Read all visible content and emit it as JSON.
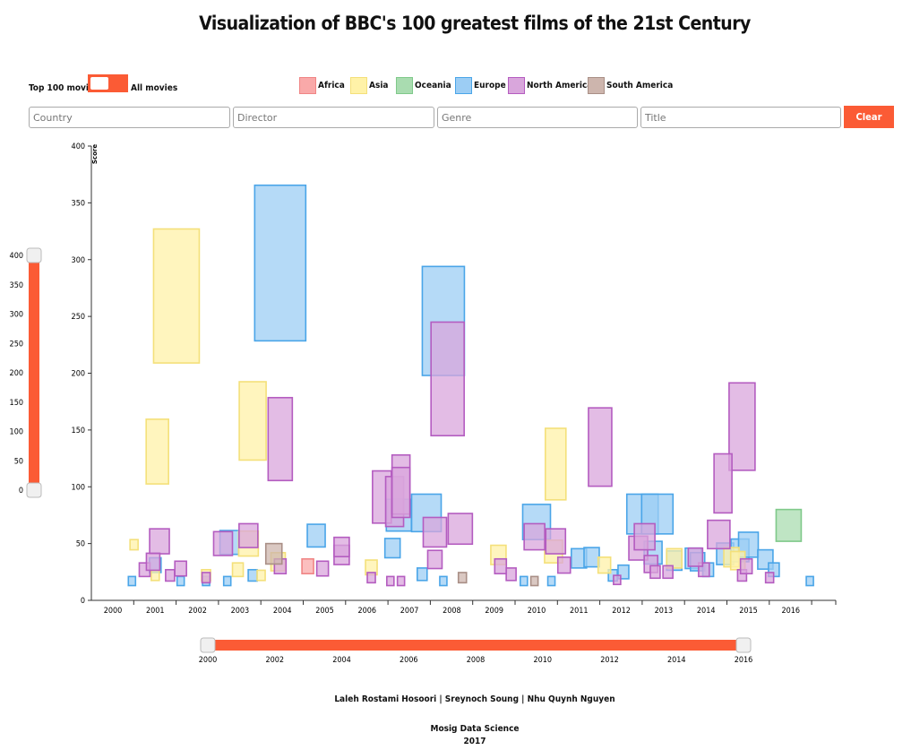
{
  "title": "Visualization of BBC's 100 greatest films of the 21st Century",
  "toggle": {
    "left_label": "Top 100 movies",
    "right_label": "All movies"
  },
  "legend": [
    {
      "name": "Africa",
      "fill": "#f9a9a9",
      "stroke": "#f08585"
    },
    {
      "name": "Asia",
      "fill": "#fff2a8",
      "stroke": "#f4e07a"
    },
    {
      "name": "Oceania",
      "fill": "#a9dcb0",
      "stroke": "#7fc98a"
    },
    {
      "name": "Europe",
      "fill": "#9ccdf4",
      "stroke": "#4aa5e8"
    },
    {
      "name": "North America",
      "fill": "#d9a6dc",
      "stroke": "#b45cc0"
    },
    {
      "name": "South America",
      "fill": "#cdb5ad",
      "stroke": "#a98f86"
    }
  ],
  "filters": {
    "country_placeholder": "Country",
    "director_placeholder": "Director",
    "genre_placeholder": "Genre",
    "title_placeholder": "Title",
    "clear_label": "Clear"
  },
  "colors": {
    "accent": "#fb5b35"
  },
  "chart_data": {
    "type": "scatter",
    "marker": "rectangle sized by value",
    "ylabel": "Score",
    "xlim": [
      2000,
      2016
    ],
    "ylim": [
      0,
      400
    ],
    "xticks": [
      2000,
      2001,
      2002,
      2003,
      2004,
      2005,
      2006,
      2007,
      2008,
      2009,
      2010,
      2011,
      2012,
      2013,
      2014,
      2015,
      2016
    ],
    "yticks": [
      0,
      50,
      100,
      150,
      200,
      250,
      300,
      350,
      400
    ],
    "series": [
      {
        "name": "Europe",
        "points": [
          [
            2003.95,
            297,
            57,
            137
          ],
          [
            2007.8,
            246,
            47,
            96
          ],
          [
            2000.45,
            17,
            8,
            8
          ],
          [
            2001.0,
            31,
            13,
            13
          ],
          [
            2001.6,
            17,
            8,
            8
          ],
          [
            2002.2,
            17,
            8,
            8
          ],
          [
            2002.75,
            51,
            21,
            21
          ],
          [
            2002.7,
            17,
            8,
            8
          ],
          [
            2003.3,
            22,
            10,
            10
          ],
          [
            2004.8,
            57,
            20,
            20
          ],
          [
            2006.75,
            75,
            28,
            28
          ],
          [
            2006.6,
            46,
            17,
            17
          ],
          [
            2007.4,
            77,
            33,
            33
          ],
          [
            2007.3,
            23,
            11,
            11
          ],
          [
            2007.8,
            17,
            8,
            8
          ],
          [
            2010.0,
            69,
            31,
            31
          ],
          [
            2009.7,
            17,
            8,
            8
          ],
          [
            2010.35,
            17,
            8,
            8
          ],
          [
            2011.0,
            37,
            17,
            17
          ],
          [
            2011.3,
            38,
            17,
            17
          ],
          [
            2011.8,
            22,
            10,
            10
          ],
          [
            2012.05,
            25,
            12,
            12
          ],
          [
            2012.5,
            76,
            35,
            35
          ],
          [
            2012.75,
            42,
            20,
            20
          ],
          [
            2012.85,
            76,
            35,
            35
          ],
          [
            2013.25,
            35,
            17,
            17
          ],
          [
            2013.7,
            37,
            18,
            18
          ],
          [
            2013.8,
            34,
            16,
            16
          ],
          [
            2014.05,
            27,
            12,
            12
          ],
          [
            2014.45,
            41,
            19,
            19
          ],
          [
            2014.8,
            44,
            20,
            20
          ],
          [
            2015.0,
            49,
            22,
            22
          ],
          [
            2015.4,
            36,
            17,
            17
          ],
          [
            2015.6,
            27,
            12,
            12
          ],
          [
            2016.45,
            17,
            8,
            8
          ]
        ]
      },
      {
        "name": "Asia",
        "points": [
          [
            2001.5,
            268,
            51,
            118
          ],
          [
            2001.05,
            131,
            25,
            57
          ],
          [
            2003.3,
            158,
            30,
            69
          ],
          [
            2000.5,
            49,
            9,
            9
          ],
          [
            2001.0,
            22,
            9,
            9
          ],
          [
            2002.2,
            22,
            10,
            10
          ],
          [
            2002.95,
            27,
            12,
            12
          ],
          [
            2003.2,
            50,
            22,
            22
          ],
          [
            2003.5,
            22,
            9,
            9
          ],
          [
            2003.9,
            34,
            16,
            16
          ],
          [
            2006.1,
            29,
            13,
            13
          ],
          [
            2009.1,
            40,
            17,
            17
          ],
          [
            2010.4,
            43,
            20,
            20
          ],
          [
            2010.45,
            120,
            23,
            63
          ],
          [
            2011.6,
            31,
            14,
            14
          ],
          [
            2013.25,
            37,
            17,
            17
          ],
          [
            2014.6,
            38,
            17,
            17
          ],
          [
            2014.75,
            35,
            16,
            16
          ]
        ]
      },
      {
        "name": "North America",
        "points": [
          [
            2003.95,
            142,
            27,
            73
          ],
          [
            2007.9,
            195,
            37,
            100
          ],
          [
            2011.5,
            135,
            26,
            69
          ],
          [
            2014.85,
            153,
            29,
            77
          ],
          [
            2014.4,
            103,
            20,
            52
          ],
          [
            2006.35,
            91,
            21,
            46
          ],
          [
            2006.65,
            87,
            20,
            44
          ],
          [
            2006.8,
            102,
            20,
            52
          ],
          [
            2001.1,
            52,
            22,
            22
          ],
          [
            2000.75,
            27,
            12,
            12
          ],
          [
            2000.95,
            34,
            15,
            15
          ],
          [
            2001.35,
            22,
            10,
            10
          ],
          [
            2001.6,
            28,
            13,
            13
          ],
          [
            2002.2,
            20,
            9,
            9
          ],
          [
            2002.6,
            50,
            21,
            21
          ],
          [
            2003.2,
            57,
            21,
            21
          ],
          [
            2003.95,
            30,
            13,
            13
          ],
          [
            2004.95,
            28,
            13,
            13
          ],
          [
            2005.4,
            40,
            17,
            17
          ],
          [
            2005.4,
            47,
            17,
            17
          ],
          [
            2006.1,
            20,
            9,
            9
          ],
          [
            2006.55,
            17,
            8,
            8
          ],
          [
            2006.8,
            17,
            8,
            8
          ],
          [
            2006.8,
            95,
            20,
            44
          ],
          [
            2007.6,
            60,
            26,
            26
          ],
          [
            2007.6,
            36,
            16,
            16
          ],
          [
            2008.2,
            63,
            27,
            27
          ],
          [
            2009.15,
            30,
            13,
            13
          ],
          [
            2009.4,
            23,
            11,
            11
          ],
          [
            2009.95,
            56,
            23,
            23
          ],
          [
            2010.45,
            52,
            22,
            22
          ],
          [
            2010.65,
            31,
            14,
            14
          ],
          [
            2012.4,
            46,
            21,
            21
          ],
          [
            2012.55,
            56,
            23,
            23
          ],
          [
            2012.7,
            32,
            15,
            15
          ],
          [
            2012.8,
            25,
            11,
            11
          ],
          [
            2013.1,
            25,
            11,
            11
          ],
          [
            2013.95,
            27,
            12,
            12
          ],
          [
            2014.3,
            58,
            25,
            25
          ],
          [
            2014.85,
            22,
            10,
            10
          ],
          [
            2015.5,
            20,
            9,
            9
          ],
          [
            2011.9,
            18,
            8,
            8
          ],
          [
            2014.95,
            30,
            13,
            13
          ],
          [
            2013.75,
            38,
            16,
            16
          ]
        ]
      },
      {
        "name": "Oceania",
        "points": [
          [
            2015.95,
            66,
            28,
            28
          ]
        ]
      },
      {
        "name": "Africa",
        "points": [
          [
            2004.6,
            30,
            13,
            13
          ]
        ]
      },
      {
        "name": "South America",
        "points": [
          [
            2003.8,
            41,
            18,
            18
          ],
          [
            2008.25,
            20,
            9,
            9
          ],
          [
            2009.95,
            17,
            8,
            8
          ]
        ]
      }
    ]
  },
  "score_slider": {
    "min": 0,
    "max": 400,
    "low": 0,
    "high": 400,
    "ticks": [
      0,
      50,
      100,
      150,
      200,
      250,
      300,
      350,
      400
    ]
  },
  "year_slider": {
    "min": 2000,
    "max": 2016,
    "low": 2000,
    "high": 2016,
    "ticks": [
      2000,
      2002,
      2004,
      2006,
      2008,
      2010,
      2012,
      2014,
      2016
    ]
  },
  "footer": {
    "authors": "Laleh Rostami Hosoori | Sreynoch Soung | Nhu Quynh Nguyen",
    "program": "Mosig Data Science",
    "year": "2017"
  }
}
